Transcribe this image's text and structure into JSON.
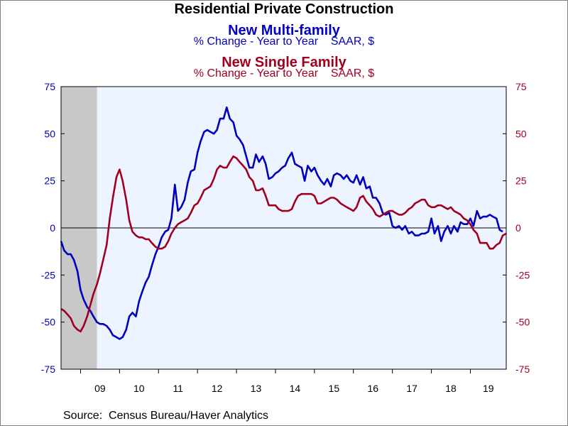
{
  "chart_data": {
    "type": "line",
    "title": "Residential Private Construction",
    "series": [
      {
        "name": "New Multi-family",
        "subtitle": "% Change - Year to Year    SAAR, $",
        "color": "#0000c0",
        "axis": "left",
        "points": [
          [
            2008.5,
            -7
          ],
          [
            2008.58,
            -12
          ],
          [
            2008.67,
            -14
          ],
          [
            2008.75,
            -14
          ],
          [
            2008.83,
            -17
          ],
          [
            2008.92,
            -23
          ],
          [
            2009.0,
            -33
          ],
          [
            2009.08,
            -38
          ],
          [
            2009.17,
            -42
          ],
          [
            2009.25,
            -44
          ],
          [
            2009.33,
            -47
          ],
          [
            2009.42,
            -50
          ],
          [
            2009.5,
            -51
          ],
          [
            2009.58,
            -51
          ],
          [
            2009.67,
            -52
          ],
          [
            2009.75,
            -54
          ],
          [
            2009.83,
            -57
          ],
          [
            2009.92,
            -58
          ],
          [
            2010.0,
            -59
          ],
          [
            2010.08,
            -58
          ],
          [
            2010.17,
            -54
          ],
          [
            2010.25,
            -47
          ],
          [
            2010.33,
            -45
          ],
          [
            2010.42,
            -47
          ],
          [
            2010.5,
            -39
          ],
          [
            2010.58,
            -34
          ],
          [
            2010.67,
            -29
          ],
          [
            2010.75,
            -26
          ],
          [
            2010.83,
            -20
          ],
          [
            2010.92,
            -14
          ],
          [
            2011.0,
            -10
          ],
          [
            2011.08,
            -5
          ],
          [
            2011.17,
            -2
          ],
          [
            2011.25,
            -1
          ],
          [
            2011.33,
            5
          ],
          [
            2011.42,
            23
          ],
          [
            2011.5,
            9
          ],
          [
            2011.58,
            11
          ],
          [
            2011.67,
            15
          ],
          [
            2011.75,
            24
          ],
          [
            2011.83,
            30
          ],
          [
            2011.92,
            31
          ],
          [
            2012.0,
            40
          ],
          [
            2012.08,
            46
          ],
          [
            2012.17,
            51
          ],
          [
            2012.25,
            52
          ],
          [
            2012.33,
            51
          ],
          [
            2012.42,
            50
          ],
          [
            2012.5,
            52
          ],
          [
            2012.58,
            58
          ],
          [
            2012.67,
            58
          ],
          [
            2012.75,
            64
          ],
          [
            2012.83,
            58
          ],
          [
            2012.92,
            56
          ],
          [
            2013.0,
            49
          ],
          [
            2013.08,
            47
          ],
          [
            2013.17,
            44
          ],
          [
            2013.25,
            38
          ],
          [
            2013.33,
            32
          ],
          [
            2013.42,
            32
          ],
          [
            2013.5,
            39
          ],
          [
            2013.58,
            35
          ],
          [
            2013.67,
            38
          ],
          [
            2013.75,
            34
          ],
          [
            2013.83,
            26
          ],
          [
            2013.92,
            27
          ],
          [
            2014.0,
            29
          ],
          [
            2014.08,
            30
          ],
          [
            2014.17,
            32
          ],
          [
            2014.25,
            33
          ],
          [
            2014.33,
            37
          ],
          [
            2014.42,
            40
          ],
          [
            2014.5,
            34
          ],
          [
            2014.58,
            33
          ],
          [
            2014.67,
            32
          ],
          [
            2014.75,
            25
          ],
          [
            2014.83,
            33
          ],
          [
            2014.92,
            30
          ],
          [
            2015.0,
            32
          ],
          [
            2015.08,
            28
          ],
          [
            2015.17,
            25
          ],
          [
            2015.25,
            23
          ],
          [
            2015.33,
            26
          ],
          [
            2015.42,
            22
          ],
          [
            2015.5,
            28
          ],
          [
            2015.58,
            29
          ],
          [
            2015.67,
            28
          ],
          [
            2015.75,
            26
          ],
          [
            2015.83,
            28
          ],
          [
            2015.92,
            25
          ],
          [
            2016.0,
            24
          ],
          [
            2016.08,
            28
          ],
          [
            2016.17,
            23
          ],
          [
            2016.25,
            27
          ],
          [
            2016.33,
            21
          ],
          [
            2016.42,
            22
          ],
          [
            2016.5,
            16
          ],
          [
            2016.58,
            16
          ],
          [
            2016.67,
            13
          ],
          [
            2016.75,
            8
          ],
          [
            2016.83,
            7
          ],
          [
            2016.92,
            8
          ],
          [
            2017.0,
            1
          ],
          [
            2017.08,
            0
          ],
          [
            2017.17,
            1
          ],
          [
            2017.25,
            -1
          ],
          [
            2017.33,
            1
          ],
          [
            2017.42,
            -3
          ],
          [
            2017.5,
            -2
          ],
          [
            2017.58,
            -4
          ],
          [
            2017.67,
            -4
          ],
          [
            2017.75,
            -3
          ],
          [
            2017.83,
            -3
          ],
          [
            2017.92,
            -2
          ],
          [
            2018.0,
            5
          ],
          [
            2018.08,
            -3
          ],
          [
            2018.17,
            1
          ],
          [
            2018.25,
            -7
          ],
          [
            2018.33,
            -2
          ],
          [
            2018.42,
            1
          ],
          [
            2018.5,
            -3
          ],
          [
            2018.58,
            1
          ],
          [
            2018.67,
            -2
          ],
          [
            2018.75,
            3
          ],
          [
            2018.83,
            2
          ],
          [
            2018.92,
            2
          ],
          [
            2019.0,
            5
          ],
          [
            2019.08,
            1
          ],
          [
            2019.17,
            9
          ],
          [
            2019.25,
            5
          ],
          [
            2019.33,
            6
          ],
          [
            2019.42,
            6
          ],
          [
            2019.5,
            7
          ],
          [
            2019.58,
            6
          ],
          [
            2019.67,
            5
          ],
          [
            2019.75,
            -1
          ],
          [
            2019.83,
            -2
          ]
        ]
      },
      {
        "name": "New Single Family",
        "subtitle": "% Change - Year to Year    SAAR, $",
        "color": "#a00020",
        "axis": "right",
        "points": [
          [
            2008.5,
            -43
          ],
          [
            2008.58,
            -44
          ],
          [
            2008.67,
            -46
          ],
          [
            2008.75,
            -48
          ],
          [
            2008.83,
            -52
          ],
          [
            2008.92,
            -54
          ],
          [
            2009.0,
            -55
          ],
          [
            2009.08,
            -52
          ],
          [
            2009.17,
            -47
          ],
          [
            2009.25,
            -41
          ],
          [
            2009.33,
            -35
          ],
          [
            2009.42,
            -30
          ],
          [
            2009.5,
            -24
          ],
          [
            2009.58,
            -17
          ],
          [
            2009.67,
            -9
          ],
          [
            2009.75,
            5
          ],
          [
            2009.83,
            16
          ],
          [
            2009.92,
            27
          ],
          [
            2010.0,
            31
          ],
          [
            2010.08,
            25
          ],
          [
            2010.17,
            15
          ],
          [
            2010.25,
            4
          ],
          [
            2010.33,
            -2
          ],
          [
            2010.42,
            -4
          ],
          [
            2010.5,
            -5
          ],
          [
            2010.58,
            -5
          ],
          [
            2010.67,
            -6
          ],
          [
            2010.75,
            -6
          ],
          [
            2010.83,
            -8
          ],
          [
            2010.92,
            -10
          ],
          [
            2011.0,
            -11
          ],
          [
            2011.08,
            -11
          ],
          [
            2011.17,
            -10
          ],
          [
            2011.25,
            -7
          ],
          [
            2011.33,
            -3
          ],
          [
            2011.42,
            0
          ],
          [
            2011.5,
            2
          ],
          [
            2011.58,
            3
          ],
          [
            2011.67,
            4
          ],
          [
            2011.75,
            5
          ],
          [
            2011.83,
            8
          ],
          [
            2011.92,
            12
          ],
          [
            2012.0,
            13
          ],
          [
            2012.08,
            16
          ],
          [
            2012.17,
            20
          ],
          [
            2012.25,
            21
          ],
          [
            2012.33,
            22
          ],
          [
            2012.42,
            26
          ],
          [
            2012.5,
            31
          ],
          [
            2012.58,
            33
          ],
          [
            2012.67,
            32
          ],
          [
            2012.75,
            32
          ],
          [
            2012.83,
            35
          ],
          [
            2012.92,
            38
          ],
          [
            2013.0,
            37
          ],
          [
            2013.08,
            35
          ],
          [
            2013.17,
            33
          ],
          [
            2013.25,
            31
          ],
          [
            2013.33,
            27
          ],
          [
            2013.42,
            25
          ],
          [
            2013.5,
            20
          ],
          [
            2013.58,
            20
          ],
          [
            2013.67,
            21
          ],
          [
            2013.75,
            17
          ],
          [
            2013.83,
            12
          ],
          [
            2013.92,
            12
          ],
          [
            2014.0,
            12
          ],
          [
            2014.08,
            10
          ],
          [
            2014.17,
            9
          ],
          [
            2014.25,
            9
          ],
          [
            2014.33,
            9
          ],
          [
            2014.42,
            10
          ],
          [
            2014.5,
            14
          ],
          [
            2014.58,
            17
          ],
          [
            2014.67,
            18
          ],
          [
            2014.75,
            18
          ],
          [
            2014.83,
            18
          ],
          [
            2014.92,
            18
          ],
          [
            2015.0,
            17
          ],
          [
            2015.08,
            13
          ],
          [
            2015.17,
            13
          ],
          [
            2015.25,
            14
          ],
          [
            2015.33,
            15
          ],
          [
            2015.42,
            16
          ],
          [
            2015.5,
            16
          ],
          [
            2015.58,
            15
          ],
          [
            2015.67,
            13
          ],
          [
            2015.75,
            12
          ],
          [
            2015.83,
            11
          ],
          [
            2015.92,
            10
          ],
          [
            2016.0,
            9
          ],
          [
            2016.08,
            11
          ],
          [
            2016.17,
            16
          ],
          [
            2016.25,
            17
          ],
          [
            2016.33,
            14
          ],
          [
            2016.42,
            12
          ],
          [
            2016.5,
            10
          ],
          [
            2016.58,
            7
          ],
          [
            2016.67,
            6
          ],
          [
            2016.75,
            7
          ],
          [
            2016.83,
            8
          ],
          [
            2016.92,
            9
          ],
          [
            2017.0,
            9
          ],
          [
            2017.08,
            8
          ],
          [
            2017.17,
            7
          ],
          [
            2017.25,
            7
          ],
          [
            2017.33,
            8
          ],
          [
            2017.42,
            10
          ],
          [
            2017.5,
            11
          ],
          [
            2017.58,
            13
          ],
          [
            2017.67,
            14
          ],
          [
            2017.75,
            15
          ],
          [
            2017.83,
            15
          ],
          [
            2017.92,
            12
          ],
          [
            2018.0,
            11
          ],
          [
            2018.08,
            11
          ],
          [
            2018.17,
            12
          ],
          [
            2018.25,
            12
          ],
          [
            2018.33,
            11
          ],
          [
            2018.42,
            10
          ],
          [
            2018.5,
            11
          ],
          [
            2018.58,
            9
          ],
          [
            2018.67,
            8
          ],
          [
            2018.75,
            7
          ],
          [
            2018.83,
            5
          ],
          [
            2018.92,
            4
          ],
          [
            2019.0,
            2
          ],
          [
            2019.08,
            -1
          ],
          [
            2019.17,
            -3
          ],
          [
            2019.25,
            -8
          ],
          [
            2019.33,
            -8
          ],
          [
            2019.42,
            -8
          ],
          [
            2019.5,
            -11
          ],
          [
            2019.58,
            -11
          ],
          [
            2019.67,
            -9
          ],
          [
            2019.75,
            -8
          ],
          [
            2019.83,
            -4
          ],
          [
            2019.92,
            -3
          ]
        ]
      }
    ],
    "x_range": [
      2008.5,
      2019.92
    ],
    "x_ticks": [
      "09",
      "10",
      "11",
      "12",
      "13",
      "14",
      "15",
      "16",
      "17",
      "18",
      "19"
    ],
    "y_left": {
      "range": [
        -75,
        75
      ],
      "ticks": [
        75,
        50,
        25,
        0,
        -25,
        -50,
        -75
      ],
      "color": "#0000c0"
    },
    "y_right": {
      "range": [
        -75,
        75
      ],
      "ticks": [
        75,
        50,
        25,
        0,
        -25,
        -50,
        -75
      ],
      "color": "#a00020"
    },
    "recession_shading": [
      [
        2008.5,
        2009.42
      ]
    ],
    "plot_background": "#eef4ff",
    "recession_color": "#c8c8c8",
    "zero_line": true,
    "grid": false
  },
  "titles": {
    "main": "Residential Private Construction",
    "series1": "New Multi-family",
    "series1_sub": "% Change - Year to Year    SAAR, $",
    "series2": "New Single Family",
    "series2_sub": "% Change - Year to Year    SAAR, $"
  },
  "source": "Source:  Census Bureau/Haver Analytics"
}
